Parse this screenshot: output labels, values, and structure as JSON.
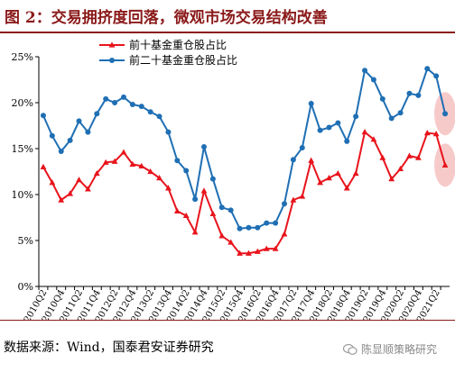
{
  "header": {
    "title": "图 2：交易拥挤度回落，微观市场交易结构改善"
  },
  "footer": {
    "source": "数据来源：Wind，国泰君安证券研究",
    "watermark": "陈显顺策略研究"
  },
  "chart_data": {
    "type": "line",
    "categories": [
      "2010Q2",
      "2010Q3",
      "2010Q4",
      "2011Q1",
      "2011Q2",
      "2011Q3",
      "2011Q4",
      "2012Q1",
      "2012Q2",
      "2012Q3",
      "2012Q4",
      "2013Q1",
      "2013Q2",
      "2013Q3",
      "2013Q4",
      "2014Q1",
      "2014Q2",
      "2014Q3",
      "2014Q4",
      "2015Q1",
      "2015Q2",
      "2015Q3",
      "2015Q4",
      "2016Q1",
      "2016Q2",
      "2016Q3",
      "2016Q4",
      "2017Q1",
      "2017Q2",
      "2017Q3",
      "2017Q4",
      "2018Q1",
      "2018Q2",
      "2018Q3",
      "2018Q4",
      "2019Q1",
      "2019Q2",
      "2019Q3",
      "2019Q4",
      "2020Q1",
      "2020Q2",
      "2020Q3",
      "2020Q4",
      "2021Q1",
      "2021Q2",
      "2021Q3"
    ],
    "tick_labels": [
      "2010Q2",
      "2010Q4",
      "2011Q2",
      "2011Q4",
      "2012Q2",
      "2012Q4",
      "2013Q2",
      "2013Q4",
      "2014Q2",
      "2014Q4",
      "2015Q2",
      "2015Q4",
      "2016Q2",
      "2016Q4",
      "2017Q2",
      "2017Q4",
      "2018Q2",
      "2018Q4",
      "2019Q2",
      "2019Q4",
      "2020Q2",
      "2020Q4",
      "2021Q2"
    ],
    "y_ticks": [
      "0%",
      "5%",
      "10%",
      "15%",
      "20%",
      "25%"
    ],
    "ylim": [
      0,
      25
    ],
    "grid": false,
    "legend_position": "top-left",
    "series": [
      {
        "name": "前十基金重仓股占比",
        "color": "#e8141c",
        "marker": "triangle",
        "values": [
          13.0,
          11.3,
          9.4,
          10.1,
          11.6,
          10.6,
          12.3,
          13.5,
          13.6,
          14.6,
          13.3,
          13.1,
          12.5,
          11.8,
          10.7,
          8.2,
          7.7,
          5.9,
          10.4,
          7.9,
          5.5,
          4.8,
          3.6,
          3.6,
          3.8,
          4.1,
          4.1,
          5.7,
          9.4,
          9.8,
          13.7,
          11.3,
          11.8,
          12.3,
          10.7,
          12.3,
          16.8,
          16.0,
          14.0,
          11.7,
          12.8,
          14.2,
          14.0,
          16.7,
          16.6,
          13.2
        ]
      },
      {
        "name": "前二十基金重仓股占比",
        "color": "#1f6fb4",
        "marker": "circle",
        "values": [
          18.6,
          16.4,
          14.7,
          15.9,
          18.0,
          16.8,
          18.8,
          20.4,
          20.0,
          20.6,
          19.8,
          19.6,
          19.0,
          18.5,
          16.8,
          13.7,
          12.6,
          9.5,
          15.2,
          11.7,
          8.6,
          8.3,
          6.3,
          6.4,
          6.4,
          6.9,
          6.9,
          9.0,
          13.8,
          15.1,
          19.9,
          17.0,
          17.3,
          17.8,
          15.8,
          18.5,
          23.5,
          22.5,
          20.4,
          18.3,
          18.9,
          21.0,
          20.8,
          23.7,
          22.9,
          18.8
        ]
      }
    ]
  }
}
